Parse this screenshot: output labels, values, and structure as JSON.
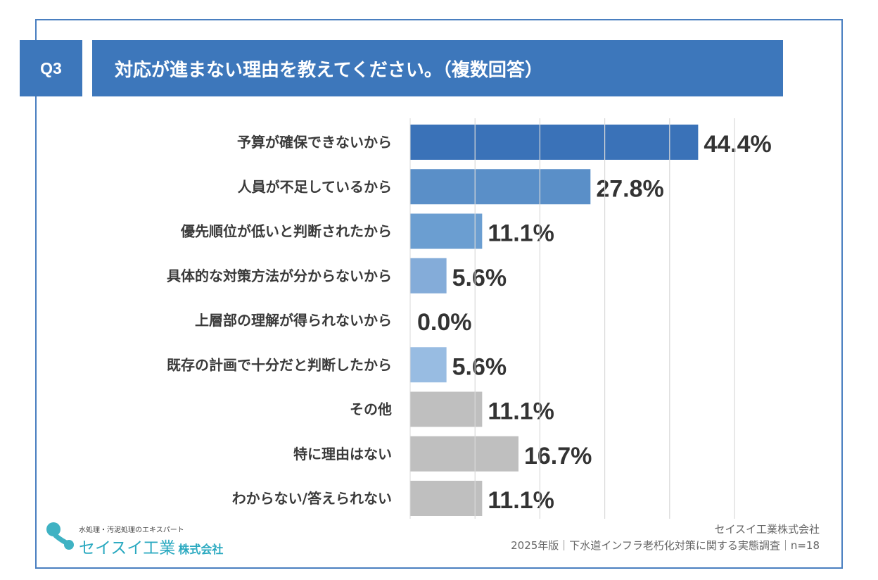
{
  "header": {
    "question_no": "Q3",
    "title": "対応が進まない理由を教えてください。（複数回答）"
  },
  "colors": {
    "header_bg": "#3d77bb",
    "frame": "#4a7fc0",
    "gray_bar": "#bfbfbf",
    "logo_teal": "#2aa9c0"
  },
  "chart_data": {
    "type": "bar",
    "orientation": "horizontal",
    "title": "対応が進まない理由を教えてください。（複数回答）",
    "xlabel": "",
    "ylabel": "",
    "xlim": [
      0,
      50
    ],
    "grid": true,
    "grid_step": 10,
    "unit": "%",
    "categories": [
      "予算が確保できないから",
      "人員が不足しているから",
      "優先順位が低いと判断されたから",
      "具体的な対策方法が分からないから",
      "上層部の理解が得られないから",
      "既存の計画で十分だと判断したから",
      "その他",
      "特に理由はない",
      "わからない/答えられない"
    ],
    "values": [
      44.4,
      27.8,
      11.1,
      5.6,
      0.0,
      5.6,
      11.1,
      16.7,
      11.1
    ],
    "value_labels": [
      "44.4%",
      "27.8%",
      "11.1%",
      "5.6%",
      "0.0%",
      "5.6%",
      "11.1%",
      "16.7%",
      "11.1%"
    ],
    "bar_colors": [
      "#3a72b8",
      "#5a8fc8",
      "#6b9ed1",
      "#84acd9",
      "#9cbfe3",
      "#98bce2",
      "#bfbfbf",
      "#bfbfbf",
      "#bfbfbf"
    ]
  },
  "footer": {
    "company": "セイスイ工業株式会社",
    "source": "2025年版｜下水道インフラ老朽化対策に関する実態調査｜n=18"
  },
  "logo": {
    "tagline": "水処理・汚泥処理のエキスパート",
    "name": "セイスイ工業",
    "suffix": "株式会社"
  }
}
